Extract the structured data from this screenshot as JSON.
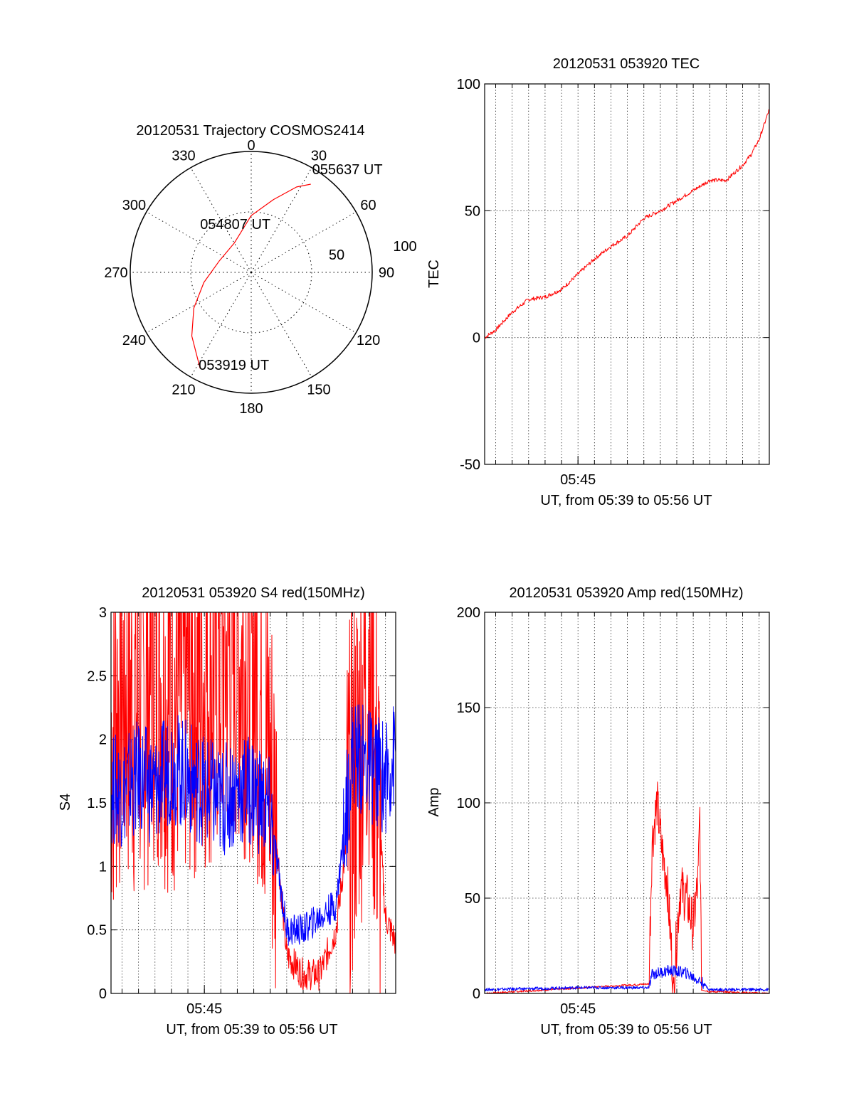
{
  "chart_data": [
    {
      "type": "polar",
      "title": "20120531 Trajectory COSMOS2414",
      "angle_labels": [
        "0",
        "30",
        "60",
        "90",
        "120",
        "150",
        "180",
        "210",
        "240",
        "270",
        "300",
        "330"
      ],
      "radius_labels": [
        "50",
        "100"
      ],
      "rlim": [
        0,
        100
      ],
      "grid": true,
      "trajectory": {
        "color": "#ff0000",
        "points": [
          {
            "az": 208,
            "zen": 90
          },
          {
            "az": 223,
            "zen": 72
          },
          {
            "az": 238,
            "zen": 56
          },
          {
            "az": 258,
            "zen": 40
          },
          {
            "az": 290,
            "zen": 28
          },
          {
            "az": 330,
            "zen": 28
          },
          {
            "az": 0,
            "zen": 47
          },
          {
            "az": 17,
            "zen": 63
          },
          {
            "az": 28,
            "zen": 80
          },
          {
            "az": 34,
            "zen": 88
          }
        ]
      },
      "annotations": [
        {
          "text": "053919 UT",
          "az": 208,
          "zen": 90
        },
        {
          "text": "054807 UT",
          "az": 330,
          "zen": 28
        },
        {
          "text": "055637 UT",
          "az": 34,
          "zen": 88
        }
      ]
    },
    {
      "type": "line",
      "title": "20120531 053920 TEC",
      "ylabel": "TEC",
      "xlabel": "UT, from 05:39 to 05:56 UT",
      "x_tick_labels": [
        {
          "t": 45,
          "label": "05:45"
        }
      ],
      "xlim": [
        39.33,
        56.62
      ],
      "ylim": [
        -50,
        100
      ],
      "yticks": [
        -50,
        0,
        50,
        100
      ],
      "grid": true,
      "series": [
        {
          "color": "#ff0000",
          "x": [
            39.33,
            40.0,
            41.0,
            42.0,
            43.0,
            44.0,
            45.0,
            46.0,
            47.0,
            48.0,
            49.0,
            50.0,
            51.0,
            52.0,
            53.0,
            54.0,
            55.0,
            55.5,
            56.0,
            56.62
          ],
          "y": [
            0,
            3,
            10,
            15,
            16,
            19,
            25,
            31,
            36,
            40,
            47,
            50,
            54,
            58,
            62,
            62,
            68,
            72,
            78,
            90
          ]
        }
      ]
    },
    {
      "type": "line",
      "title": "20120531 053920 S4 red(150MHz)",
      "ylabel": "S4",
      "xlabel": "UT, from 05:39 to 05:56 UT",
      "x_tick_labels": [
        {
          "t": 45,
          "label": "05:45"
        }
      ],
      "xlim": [
        39.33,
        56.62
      ],
      "ylim": [
        0,
        3
      ],
      "yticks": [
        0,
        0.5,
        1,
        1.5,
        2,
        2.5,
        3
      ],
      "ytick_labels": [
        "0",
        "0.5",
        "1",
        "1.5",
        "2",
        "2.5",
        "3"
      ],
      "grid": true,
      "series": [
        {
          "color": "#ff0000",
          "x": [
            39.33,
            40,
            41,
            42,
            43,
            44,
            45,
            46,
            47,
            48,
            49,
            50,
            51,
            52,
            53,
            54,
            55,
            56,
            56.62
          ],
          "y": [
            2.0,
            2.4,
            2.2,
            2.6,
            2.3,
            2.4,
            2.5,
            2.6,
            2.7,
            2.6,
            1.8,
            0.3,
            0.15,
            0.15,
            0.5,
            1.6,
            2.6,
            0.6,
            0.4
          ]
        },
        {
          "color": "#0000ff",
          "x": [
            39.33,
            40,
            41,
            42,
            43,
            44,
            45,
            46,
            47,
            48,
            49,
            50,
            51,
            52,
            53,
            54,
            55,
            56,
            56.62
          ],
          "y": [
            1.6,
            1.6,
            1.7,
            1.6,
            1.8,
            1.7,
            1.6,
            1.5,
            1.6,
            1.6,
            1.4,
            0.5,
            0.5,
            0.6,
            0.7,
            1.9,
            1.8,
            1.7,
            1.9
          ]
        }
      ]
    },
    {
      "type": "line",
      "title": "20120531 053920 Amp red(150MHz)",
      "ylabel": "Amp",
      "xlabel": "UT, from 05:39 to 05:56 UT",
      "x_tick_labels": [
        {
          "t": 45,
          "label": "05:45"
        }
      ],
      "xlim": [
        39.33,
        56.62
      ],
      "ylim": [
        0,
        200
      ],
      "yticks": [
        0,
        50,
        100,
        150,
        200
      ],
      "grid": true,
      "series": [
        {
          "color": "#ff0000",
          "x": [
            39.33,
            49.3,
            49.5,
            49.8,
            50.1,
            50.4,
            50.8,
            51.2,
            51.6,
            52.0,
            52.3,
            52.4,
            52.5,
            53,
            56.62
          ],
          "y": [
            0,
            5,
            80,
            100,
            75,
            60,
            5,
            55,
            50,
            35,
            60,
            95,
            2,
            1,
            0
          ]
        },
        {
          "color": "#0000ff",
          "x": [
            39.33,
            45,
            49.3,
            49.5,
            50.5,
            51.5,
            52.5,
            53,
            56.62
          ],
          "y": [
            2,
            3,
            3,
            10,
            12,
            11,
            6,
            2,
            2
          ]
        }
      ]
    }
  ]
}
